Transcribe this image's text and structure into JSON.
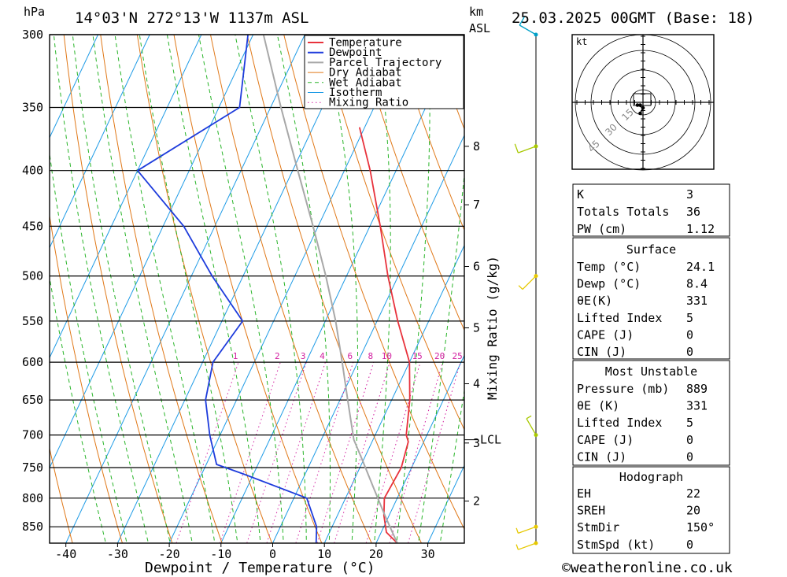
{
  "header": {
    "location": "14°03'N 272°13'W 1137m ASL",
    "run": "25.03.2025 00GMT (Base: 18)",
    "pressure_unit": "hPa",
    "km_unit": "km",
    "km_asl": "ASL"
  },
  "footer": {
    "copyright": "©weatheronline.co.uk"
  },
  "chart_data": {
    "type": "line",
    "subtype": "skew-T log-P diagram",
    "xlabel": "Dewpoint / Temperature (°C)",
    "ylabel_right": "Mixing Ratio (g/kg)",
    "x_ticks": [
      -40,
      -30,
      -20,
      -10,
      0,
      10,
      20,
      30
    ],
    "pressure_levels": [
      300,
      350,
      400,
      450,
      500,
      550,
      600,
      650,
      700,
      750,
      800,
      850
    ],
    "km_ticks": [
      {
        "label": "8",
        "p": 380
      },
      {
        "label": "7",
        "p": 430
      },
      {
        "label": "6",
        "p": 490
      },
      {
        "label": "5",
        "p": 558
      },
      {
        "label": "4",
        "p": 628
      },
      {
        "label": "3",
        "p": 712
      },
      {
        "label": "2",
        "p": 805
      }
    ],
    "lcl": {
      "label": "LCL",
      "p": 707
    },
    "mixing_ratio_labels": [
      "1",
      "2",
      "3",
      "4",
      "6",
      "8",
      "10",
      "15",
      "20",
      "25"
    ],
    "legend": [
      "Temperature",
      "Dewpoint",
      "Parcel Trajectory",
      "Dry Adiabat",
      "Wet Adiabat",
      "Isotherm",
      "Mixing Ratio"
    ],
    "colors": {
      "temperature": "#e8323c",
      "dewpoint": "#1e3cdc",
      "parcel": "#a8a8a8",
      "dry_adiabat": "#e07818",
      "wet_adiabat": "#28b428",
      "isotherm": "#1e9be6",
      "mixing_ratio": "#d21ea0"
    },
    "series": [
      {
        "name": "Temperature",
        "points": [
          {
            "p": 880,
            "t": 24.1
          },
          {
            "p": 860,
            "t": 21.0
          },
          {
            "p": 830,
            "t": 19.0
          },
          {
            "p": 800,
            "t": 17.5
          },
          {
            "p": 750,
            "t": 18.0
          },
          {
            "p": 710,
            "t": 17.0
          },
          {
            "p": 700,
            "t": 16.0
          },
          {
            "p": 650,
            "t": 13.5
          },
          {
            "p": 600,
            "t": 10.0
          },
          {
            "p": 550,
            "t": 4.0
          },
          {
            "p": 500,
            "t": -2.0
          },
          {
            "p": 450,
            "t": -8.0
          },
          {
            "p": 400,
            "t": -15.0
          },
          {
            "p": 365,
            "t": -21.0
          }
        ]
      },
      {
        "name": "Dewpoint",
        "points": [
          {
            "p": 880,
            "t": 8.4
          },
          {
            "p": 850,
            "t": 7.0
          },
          {
            "p": 800,
            "t": 2.5
          },
          {
            "p": 760,
            "t": -12.0
          },
          {
            "p": 745,
            "t": -18.0
          },
          {
            "p": 700,
            "t": -22.0
          },
          {
            "p": 650,
            "t": -26.0
          },
          {
            "p": 600,
            "t": -28.0
          },
          {
            "p": 550,
            "t": -26.0
          },
          {
            "p": 500,
            "t": -36.0
          },
          {
            "p": 450,
            "t": -46.0
          },
          {
            "p": 400,
            "t": -60.0
          },
          {
            "p": 350,
            "t": -46.0
          },
          {
            "p": 300,
            "t": -51.0
          }
        ]
      },
      {
        "name": "Parcel Trajectory",
        "points": [
          {
            "p": 880,
            "t": 24.1
          },
          {
            "p": 830,
            "t": 19.2
          },
          {
            "p": 780,
            "t": 14.2
          },
          {
            "p": 740,
            "t": 10.0
          },
          {
            "p": 707,
            "t": 6.3
          },
          {
            "p": 650,
            "t": 1.5
          },
          {
            "p": 600,
            "t": -3.0
          },
          {
            "p": 550,
            "t": -8.0
          },
          {
            "p": 500,
            "t": -14.0
          },
          {
            "p": 450,
            "t": -21.0
          },
          {
            "p": 400,
            "t": -29.0
          },
          {
            "p": 350,
            "t": -38.0
          },
          {
            "p": 300,
            "t": -48.0
          }
        ]
      }
    ],
    "wind_barbs": [
      {
        "p": 300,
        "dir": 300,
        "speed_kt": 10
      },
      {
        "p": 380,
        "dir": 250,
        "speed_kt": 10
      },
      {
        "p": 500,
        "dir": 225,
        "speed_kt": 5
      },
      {
        "p": 700,
        "dir": 330,
        "speed_kt": 5
      },
      {
        "p": 850,
        "dir": 250,
        "speed_kt": 5
      },
      {
        "p": 880,
        "dir": 250,
        "speed_kt": 5
      }
    ]
  },
  "hodograph": {
    "unit_label": "kt",
    "ring_labels": [
      "15",
      "30",
      "45"
    ],
    "points": [
      {
        "u": -1,
        "v": -1
      },
      {
        "u": -2,
        "v": -1
      },
      {
        "u": 0,
        "v": -2
      },
      {
        "u": -1,
        "v": -4
      }
    ]
  },
  "indices": {
    "rows": [
      {
        "label": "K",
        "value": "3"
      },
      {
        "label": "Totals Totals",
        "value": "36"
      },
      {
        "label": "PW (cm)",
        "value": "1.12"
      }
    ]
  },
  "surface": {
    "title": "Surface",
    "rows": [
      {
        "label": "Temp (°C)",
        "value": "24.1"
      },
      {
        "label": "Dewp (°C)",
        "value": "8.4"
      },
      {
        "label": "θE(K)",
        "value": "331"
      },
      {
        "label": "Lifted Index",
        "value": "5"
      },
      {
        "label": "CAPE (J)",
        "value": "0"
      },
      {
        "label": "CIN (J)",
        "value": "0"
      }
    ]
  },
  "most_unstable": {
    "title": "Most Unstable",
    "rows": [
      {
        "label": "Pressure (mb)",
        "value": "889"
      },
      {
        "label": "θE (K)",
        "value": "331"
      },
      {
        "label": "Lifted Index",
        "value": "5"
      },
      {
        "label": "CAPE (J)",
        "value": "0"
      },
      {
        "label": "CIN (J)",
        "value": "0"
      }
    ]
  },
  "hodograph_table": {
    "title": "Hodograph",
    "rows": [
      {
        "label": "EH",
        "value": "22"
      },
      {
        "label": "SREH",
        "value": "20"
      },
      {
        "label": "StmDir",
        "value": "150°"
      },
      {
        "label": "StmSpd (kt)",
        "value": "0"
      }
    ]
  }
}
